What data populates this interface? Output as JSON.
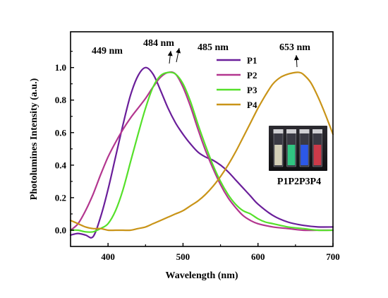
{
  "chart_data": {
    "type": "line",
    "xlabel": "Wavelength (nm)",
    "ylabel": "Photolumines Intensity (a.u.)",
    "xlim": [
      350,
      700
    ],
    "ylim": [
      -0.1,
      1.22
    ],
    "xticks": [
      400,
      500,
      600,
      700
    ],
    "yticks": [
      0.0,
      0.2,
      0.4,
      0.6,
      0.8,
      1.0
    ],
    "xtick_labels": [
      "400",
      "500",
      "600",
      "700"
    ],
    "ytick_labels": [
      "0.0",
      "0.2",
      "0.4",
      "0.6",
      "0.8",
      "1.0"
    ],
    "legend_position": "top-right",
    "grid": false,
    "series": [
      {
        "name": "P1",
        "color": "#6a1e9a",
        "x": [
          350,
          360,
          370,
          380,
          390,
          400,
          410,
          420,
          430,
          440,
          450,
          460,
          470,
          480,
          490,
          500,
          510,
          520,
          530,
          540,
          550,
          560,
          570,
          580,
          590,
          600,
          620,
          640,
          660,
          680,
          700
        ],
        "y": [
          -0.03,
          -0.02,
          -0.03,
          -0.04,
          0.08,
          0.25,
          0.45,
          0.65,
          0.83,
          0.95,
          1.0,
          0.96,
          0.86,
          0.75,
          0.66,
          0.59,
          0.53,
          0.48,
          0.45,
          0.43,
          0.4,
          0.36,
          0.31,
          0.26,
          0.21,
          0.16,
          0.09,
          0.05,
          0.03,
          0.02,
          0.02
        ]
      },
      {
        "name": "P2",
        "color": "#b3368f",
        "x": [
          350,
          360,
          370,
          380,
          390,
          400,
          410,
          420,
          430,
          440,
          450,
          460,
          470,
          480,
          490,
          500,
          510,
          520,
          530,
          540,
          550,
          560,
          570,
          580,
          590,
          600,
          620,
          640,
          660,
          680,
          700
        ],
        "y": [
          0.0,
          0.04,
          0.12,
          0.22,
          0.34,
          0.45,
          0.54,
          0.62,
          0.69,
          0.75,
          0.81,
          0.88,
          0.94,
          0.97,
          0.96,
          0.88,
          0.76,
          0.62,
          0.49,
          0.38,
          0.28,
          0.2,
          0.14,
          0.09,
          0.06,
          0.04,
          0.02,
          0.01,
          0.0,
          0.0,
          0.0
        ]
      },
      {
        "name": "P3",
        "color": "#55e02a",
        "x": [
          350,
          360,
          370,
          380,
          390,
          400,
          410,
          420,
          430,
          440,
          450,
          460,
          470,
          480,
          490,
          500,
          510,
          520,
          530,
          540,
          550,
          560,
          570,
          580,
          590,
          600,
          610,
          620,
          640,
          660,
          680,
          700
        ],
        "y": [
          0.0,
          0.0,
          -0.01,
          -0.01,
          0.01,
          0.04,
          0.12,
          0.25,
          0.42,
          0.59,
          0.75,
          0.88,
          0.95,
          0.97,
          0.96,
          0.9,
          0.79,
          0.65,
          0.52,
          0.4,
          0.3,
          0.22,
          0.16,
          0.12,
          0.1,
          0.07,
          0.05,
          0.04,
          0.02,
          0.01,
          0.0,
          0.0
        ]
      },
      {
        "name": "P4",
        "color": "#c99418",
        "x": [
          350,
          360,
          370,
          380,
          390,
          400,
          410,
          420,
          430,
          440,
          450,
          460,
          470,
          480,
          490,
          500,
          510,
          520,
          530,
          540,
          550,
          560,
          570,
          580,
          590,
          600,
          610,
          620,
          630,
          640,
          650,
          655,
          660,
          670,
          680,
          690,
          700
        ],
        "y": [
          0.06,
          0.04,
          0.02,
          0.01,
          0.01,
          0.0,
          0.0,
          0.0,
          0.0,
          0.01,
          0.02,
          0.04,
          0.06,
          0.08,
          0.1,
          0.12,
          0.15,
          0.18,
          0.22,
          0.27,
          0.33,
          0.4,
          0.48,
          0.57,
          0.66,
          0.75,
          0.83,
          0.9,
          0.94,
          0.96,
          0.97,
          0.97,
          0.96,
          0.91,
          0.82,
          0.71,
          0.59
        ]
      }
    ],
    "annotations": [
      {
        "text": "449 nm",
        "x": 449,
        "y": 1.0
      },
      {
        "text": "484 nm",
        "x": 484,
        "y": 0.97
      },
      {
        "text": "485 nm",
        "x": 485,
        "y": 0.97
      },
      {
        "text": "653 nm",
        "x": 653,
        "y": 0.97
      }
    ],
    "inset_caption": "P1P2P3P4",
    "inset_vial_colors": [
      "#e8e4c8",
      "#2fd88a",
      "#2a5cff",
      "#e03a4a"
    ]
  }
}
